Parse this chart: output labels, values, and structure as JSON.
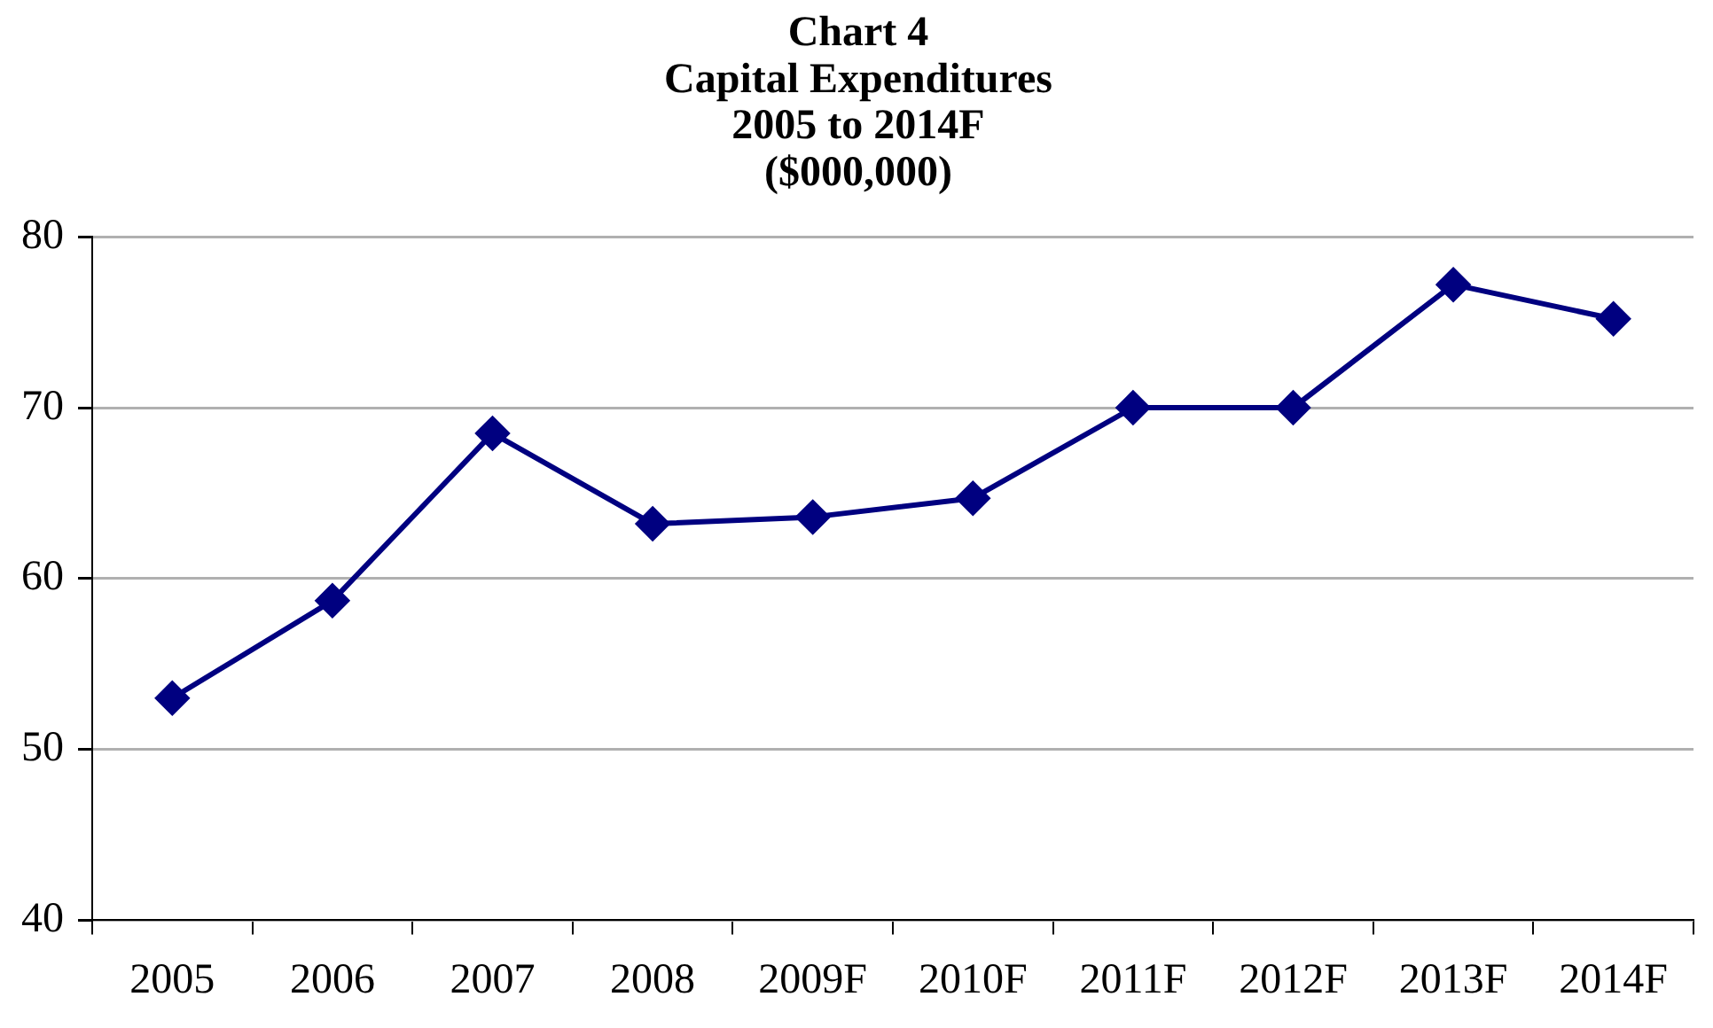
{
  "chart_data": {
    "type": "line",
    "title": "Chart 4\nCapital Expenditures\n2005 to 2014F\n($000,000)",
    "categories": [
      "2005",
      "2006",
      "2007",
      "2008",
      "2009F",
      "2010F",
      "2011F",
      "2012F",
      "2013F",
      "2014F"
    ],
    "series": [
      {
        "color": "#000080",
        "values": [
          53.0,
          58.7,
          68.5,
          63.2,
          63.6,
          64.7,
          70.0,
          70.0,
          77.2,
          75.2
        ]
      }
    ],
    "ylim": [
      40,
      80
    ],
    "yticks": [
      40,
      50,
      60,
      70,
      80
    ],
    "grid": "y",
    "legend": false,
    "marker": "diamond",
    "line_style": "solid"
  }
}
